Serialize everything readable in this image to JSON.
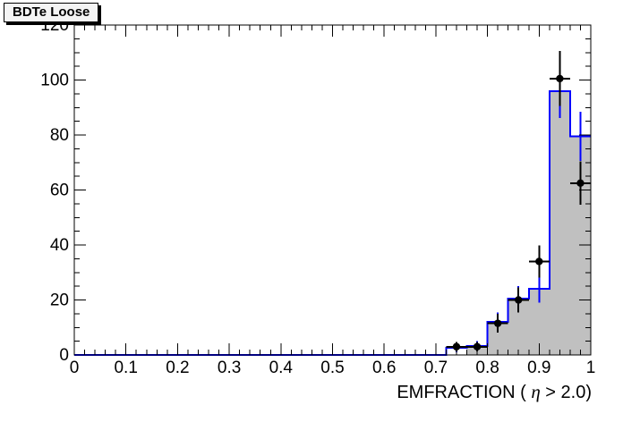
{
  "title_box": {
    "label": "BDTe Loose"
  },
  "colors": {
    "background": "#ffffff",
    "frame_line": "#000000",
    "hist_fill": "#c0c0c0",
    "hist_line": "#0000ff",
    "data_marker": "#000000",
    "title_box_bg": "#f4f4f4",
    "title_box_shadow": "#000000"
  },
  "chart_data": {
    "type": "histogram",
    "title": "BDTe Loose",
    "xlabel": "EMFRACTION ( η > 2.0)",
    "xlabel_parts": [
      "EMFRACTION ( ",
      "η",
      " > 2.0)"
    ],
    "ylabel": "",
    "xlim": [
      0,
      1
    ],
    "ylim": [
      0,
      120
    ],
    "x_tick_values": [
      0,
      0.1,
      0.2,
      0.3,
      0.4,
      0.5,
      0.6,
      0.7,
      0.8,
      0.9,
      1
    ],
    "x_tick_labels": [
      "0",
      "0.1",
      "0.2",
      "0.3",
      "0.4",
      "0.5",
      "0.6",
      "0.7",
      "0.8",
      "0.9",
      "1"
    ],
    "y_tick_values": [
      0,
      20,
      40,
      60,
      80,
      100,
      120
    ],
    "y_tick_labels": [
      "0",
      "20",
      "40",
      "60",
      "80",
      "100",
      "120"
    ],
    "x_minor_step": 0.02,
    "y_minor_step": 5,
    "bin_width": 0.04,
    "grid": false,
    "legend": null,
    "ticks_mirrored": true,
    "series": [
      {
        "name": "filled-histogram",
        "style": "step-filled",
        "color": "#c0c0c0",
        "bins": [
          {
            "x0": 0.76,
            "x1": 0.8,
            "y": 2.6
          },
          {
            "x0": 0.8,
            "x1": 0.84,
            "y": 12
          },
          {
            "x0": 0.84,
            "x1": 0.88,
            "y": 20.5
          },
          {
            "x0": 0.88,
            "x1": 0.92,
            "y": 24
          },
          {
            "x0": 0.92,
            "x1": 0.96,
            "y": 96
          },
          {
            "x0": 0.96,
            "x1": 1.0,
            "y": 79.5
          }
        ]
      },
      {
        "name": "line-histogram",
        "style": "step-line",
        "color": "#0000ff",
        "line_width": 2,
        "error_bars": true,
        "bins": [
          {
            "x0": 0.72,
            "x1": 0.76,
            "y": 2.6,
            "ey": 1.6
          },
          {
            "x0": 0.76,
            "x1": 0.8,
            "y": 3.2,
            "ey": 1.8
          },
          {
            "x0": 0.8,
            "x1": 0.84,
            "y": 12,
            "ey": 3.5
          },
          {
            "x0": 0.84,
            "x1": 0.88,
            "y": 20.5,
            "ey": 4.5
          },
          {
            "x0": 0.88,
            "x1": 0.92,
            "y": 24,
            "ey": 4.9
          },
          {
            "x0": 0.92,
            "x1": 0.96,
            "y": 96,
            "ey": 9.8
          },
          {
            "x0": 0.96,
            "x1": 1.0,
            "y": 79.5,
            "ey": 8.9
          }
        ]
      },
      {
        "name": "data-points",
        "style": "points",
        "color": "#000000",
        "marker": "circle",
        "points": [
          {
            "x": 0.74,
            "y": 3,
            "ey": 1.7,
            "ex": 0.02
          },
          {
            "x": 0.78,
            "y": 3,
            "ey": 1.7,
            "ex": 0.02
          },
          {
            "x": 0.82,
            "y": 11.5,
            "ey": 3.4,
            "ex": 0.02
          },
          {
            "x": 0.86,
            "y": 20,
            "ey": 4.5,
            "ex": 0.02
          },
          {
            "x": 0.9,
            "y": 34,
            "ey": 5.9,
            "ex": 0.02
          },
          {
            "x": 0.94,
            "y": 100.5,
            "ey": 10,
            "ex": 0.02
          },
          {
            "x": 0.98,
            "y": 62.5,
            "ey": 7.9,
            "ex": 0.02
          }
        ]
      }
    ]
  }
}
